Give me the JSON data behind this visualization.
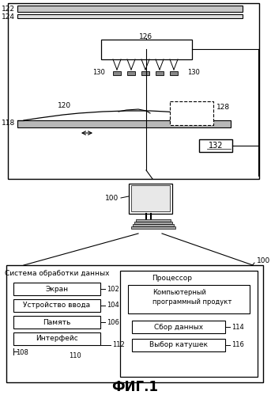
{
  "title": "ФИГ.1",
  "bg_color": "#ffffff",
  "label_122": "122",
  "label_124": "124",
  "label_126": "126",
  "label_128": "128",
  "label_130_left": "130",
  "label_130_right": "130",
  "label_118": "118",
  "label_120": "120",
  "label_132": "132",
  "label_100_left": "100",
  "label_100_right": "100",
  "box_sistem": "Система обработки данных",
  "box_processor": "Процессор",
  "box_software_1": "Компьютерный",
  "box_software_2": "программный продукт",
  "btn_ekran": "Экран",
  "btn_ustroistvo": "Устройство ввода",
  "btn_pamyat": "Память",
  "btn_interfeis": "Интерфейс",
  "btn_sbor": "Сбор данных",
  "btn_vybor": "Выбор катушек",
  "label_102": "102",
  "label_104": "104",
  "label_106": "106",
  "label_108": "108",
  "label_110": "110",
  "label_112": "112",
  "label_114": "114",
  "label_116": "116"
}
